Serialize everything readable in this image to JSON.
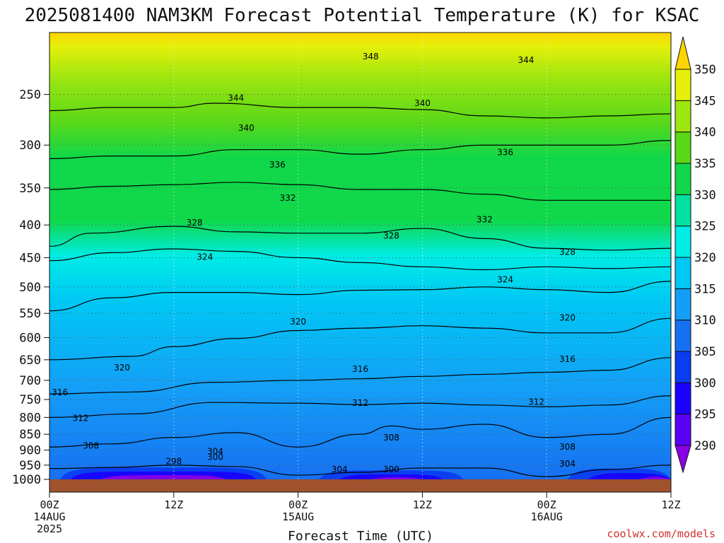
{
  "chart_data": {
    "type": "heatmap",
    "title": "2025081400 NAM3KM Forecast Potential Temperature (K) for KSAC",
    "xlabel": "Forecast Time (UTC)",
    "ylabel": "",
    "credit": "coolwx.com/models",
    "y_axis": {
      "scale": "pressure",
      "ylim": [
        1000,
        200
      ],
      "tick_values": [
        250,
        300,
        350,
        400,
        450,
        500,
        550,
        600,
        650,
        700,
        750,
        800,
        850,
        900,
        950,
        1000
      ],
      "tick_labels": [
        "250",
        "300",
        "350",
        "400",
        "450",
        "500",
        "550",
        "600",
        "650",
        "700",
        "750",
        "800",
        "850",
        "900",
        "950",
        "1000"
      ]
    },
    "x_axis": {
      "xlim": [
        0,
        60
      ],
      "tick_hours": [
        0,
        12,
        24,
        36,
        48,
        60
      ],
      "tick_labels": [
        "00Z",
        "12Z",
        "00Z",
        "12Z",
        "00Z",
        "12Z"
      ],
      "date_labels": [
        {
          "hour": 0,
          "lines": [
            "14AUG",
            "2025"
          ]
        },
        {
          "hour": 24,
          "lines": [
            "15AUG"
          ]
        },
        {
          "hour": 48,
          "lines": [
            "16AUG"
          ]
        }
      ]
    },
    "grid": true,
    "colorbar": {
      "levels": [
        290,
        295,
        300,
        305,
        310,
        315,
        320,
        325,
        330,
        335,
        340,
        345,
        350
      ],
      "labels": [
        "290",
        "295",
        "300",
        "305",
        "310",
        "315",
        "320",
        "325",
        "330",
        "335",
        "340",
        "345",
        "350"
      ],
      "colors": [
        "#8a00e6",
        "#5a00f5",
        "#1a00ff",
        "#0a3cf0",
        "#1670f2",
        "#149ef6",
        "#00c8f5",
        "#00ece6",
        "#00e0a0",
        "#10d84a",
        "#5ad818",
        "#9ee610",
        "#e6f00a",
        "#ffd500"
      ]
    },
    "series": [
      {
        "values": [
          [
            0,
            265
          ],
          [
            6,
            262
          ],
          [
            12,
            262
          ],
          [
            16,
            258
          ],
          [
            24,
            262
          ],
          [
            30,
            262
          ],
          [
            36,
            264
          ],
          [
            42,
            270
          ],
          [
            48,
            272
          ],
          [
            54,
            270
          ],
          [
            60,
            268
          ]
        ]
      },
      {
        "values": [
          [
            0,
            315
          ],
          [
            6,
            312
          ],
          [
            12,
            312
          ],
          [
            18,
            305
          ],
          [
            24,
            305
          ],
          [
            30,
            310
          ],
          [
            36,
            305
          ],
          [
            42,
            300
          ],
          [
            48,
            300
          ],
          [
            54,
            300
          ],
          [
            60,
            295
          ]
        ]
      },
      {
        "values": [
          [
            0,
            352
          ],
          [
            6,
            348
          ],
          [
            12,
            346
          ],
          [
            18,
            343
          ],
          [
            24,
            346
          ],
          [
            30,
            352
          ],
          [
            36,
            352
          ],
          [
            42,
            358
          ],
          [
            48,
            366
          ],
          [
            54,
            366
          ],
          [
            60,
            366
          ]
        ]
      },
      {
        "values": [
          [
            0,
            432
          ],
          [
            4,
            412
          ],
          [
            12,
            402
          ],
          [
            18,
            410
          ],
          [
            24,
            412
          ],
          [
            30,
            412
          ],
          [
            36,
            405
          ],
          [
            42,
            420
          ],
          [
            48,
            435
          ],
          [
            54,
            438
          ],
          [
            60,
            435
          ]
        ]
      },
      {
        "values": [
          [
            0,
            455
          ],
          [
            6,
            442
          ],
          [
            12,
            436
          ],
          [
            18,
            440
          ],
          [
            24,
            450
          ],
          [
            30,
            458
          ],
          [
            36,
            465
          ],
          [
            42,
            470
          ],
          [
            48,
            465
          ],
          [
            54,
            468
          ],
          [
            60,
            465
          ]
        ]
      },
      {
        "values": [
          [
            0,
            545
          ],
          [
            6,
            520
          ],
          [
            12,
            510
          ],
          [
            18,
            510
          ],
          [
            24,
            514
          ],
          [
            30,
            506
          ],
          [
            36,
            505
          ],
          [
            42,
            500
          ],
          [
            48,
            505
          ],
          [
            54,
            510
          ],
          [
            60,
            490
          ]
        ]
      },
      {
        "values": [
          [
            0,
            650
          ],
          [
            8,
            642
          ],
          [
            12,
            620
          ],
          [
            18,
            602
          ],
          [
            24,
            585
          ],
          [
            30,
            580
          ],
          [
            36,
            575
          ],
          [
            42,
            580
          ],
          [
            48,
            590
          ],
          [
            54,
            590
          ],
          [
            60,
            560
          ]
        ]
      },
      {
        "values": [
          [
            0,
            735
          ],
          [
            8,
            730
          ],
          [
            16,
            705
          ],
          [
            24,
            700
          ],
          [
            30,
            696
          ],
          [
            36,
            690
          ],
          [
            42,
            685
          ],
          [
            48,
            680
          ],
          [
            54,
            675
          ],
          [
            60,
            645
          ]
        ]
      },
      {
        "values": [
          [
            0,
            800
          ],
          [
            8,
            790
          ],
          [
            16,
            758
          ],
          [
            24,
            760
          ],
          [
            30,
            764
          ],
          [
            36,
            760
          ],
          [
            42,
            765
          ],
          [
            48,
            770
          ],
          [
            54,
            765
          ],
          [
            60,
            740
          ]
        ]
      },
      {
        "values": [
          [
            0,
            890
          ],
          [
            6,
            880
          ],
          [
            12,
            860
          ],
          [
            18,
            845
          ],
          [
            24,
            890
          ],
          [
            30,
            850
          ],
          [
            33,
            825
          ],
          [
            36,
            835
          ],
          [
            42,
            820
          ],
          [
            48,
            860
          ],
          [
            54,
            850
          ],
          [
            60,
            800
          ]
        ]
      },
      {
        "values": [
          [
            0,
            962
          ],
          [
            6,
            958
          ],
          [
            12,
            950
          ],
          [
            18,
            955
          ],
          [
            24,
            985
          ],
          [
            30,
            975
          ],
          [
            36,
            960
          ],
          [
            42,
            960
          ],
          [
            48,
            990
          ],
          [
            54,
            965
          ],
          [
            60,
            950
          ]
        ]
      }
    ],
    "contour_labels": [
      {
        "text": "348",
        "hour": 31,
        "pressure": 218
      },
      {
        "text": "344",
        "hour": 46,
        "pressure": 221
      },
      {
        "text": "344",
        "hour": 18,
        "pressure": 253
      },
      {
        "text": "340",
        "hour": 36,
        "pressure": 258
      },
      {
        "text": "340",
        "hour": 19,
        "pressure": 282
      },
      {
        "text": "336",
        "hour": 22,
        "pressure": 322
      },
      {
        "text": "336",
        "hour": 44,
        "pressure": 308
      },
      {
        "text": "332",
        "hour": 23,
        "pressure": 363
      },
      {
        "text": "332",
        "hour": 42,
        "pressure": 392
      },
      {
        "text": "328",
        "hour": 14,
        "pressure": 397
      },
      {
        "text": "328",
        "hour": 33,
        "pressure": 416
      },
      {
        "text": "328",
        "hour": 50,
        "pressure": 441
      },
      {
        "text": "324",
        "hour": 15,
        "pressure": 449
      },
      {
        "text": "324",
        "hour": 44,
        "pressure": 487
      },
      {
        "text": "320",
        "hour": 24,
        "pressure": 567
      },
      {
        "text": "320",
        "hour": 50,
        "pressure": 559
      },
      {
        "text": "320",
        "hour": 7,
        "pressure": 669
      },
      {
        "text": "316",
        "hour": 30,
        "pressure": 672
      },
      {
        "text": "316",
        "hour": 50,
        "pressure": 649
      },
      {
        "text": "316",
        "hour": 1,
        "pressure": 731
      },
      {
        "text": "312",
        "hour": 3,
        "pressure": 802
      },
      {
        "text": "312",
        "hour": 30,
        "pressure": 760
      },
      {
        "text": "312",
        "hour": 47,
        "pressure": 757
      },
      {
        "text": "308",
        "hour": 4,
        "pressure": 886
      },
      {
        "text": "308",
        "hour": 33,
        "pressure": 860
      },
      {
        "text": "308",
        "hour": 50,
        "pressure": 889
      },
      {
        "text": "304",
        "hour": 16,
        "pressure": 904
      },
      {
        "text": "300",
        "hour": 16,
        "pressure": 923
      },
      {
        "text": "298",
        "hour": 12,
        "pressure": 937
      },
      {
        "text": "304",
        "hour": 28,
        "pressure": 965
      },
      {
        "text": "300",
        "hour": 33,
        "pressure": 965
      },
      {
        "text": "304",
        "hour": 50,
        "pressure": 945
      }
    ]
  }
}
